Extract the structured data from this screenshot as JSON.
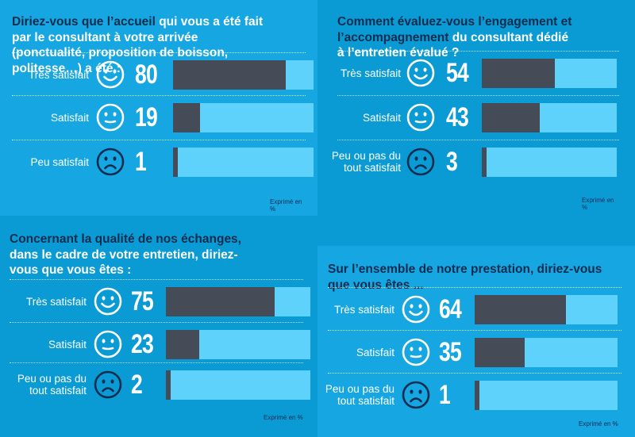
{
  "colors": {
    "background": "#16a6e2",
    "accent_block": "#0a9bd5",
    "bar_fill": "#454b57",
    "bar_track": "#5fd2fb",
    "highlight_text": "#0d2d4f"
  },
  "footer_label": "Exprimé en %",
  "icons": {
    "happy": "smiley-happy-icon",
    "neutral": "smiley-neutral-icon",
    "sad": "smiley-sad-icon"
  },
  "chart_data": [
    {
      "type": "bar",
      "title_bold": "Diriez-vous que l’accueil",
      "title_rest": " qui vous a été fait par le consultant à votre arrivée (ponctualité, proposition de boisson, politesse…) a été :",
      "categories": [
        "Très satisfait",
        "Satisfait",
        "Peu satisfait"
      ],
      "values": [
        80,
        19,
        1
      ],
      "xlim": [
        0,
        100
      ],
      "unit_note": "Exprimé en %"
    },
    {
      "type": "bar",
      "title_bold": "Comment évaluez-vous l’engagement et l’accompagnement",
      "title_rest": " du consultant dédié à l’entretien évalué ?",
      "categories": [
        "Très satisfait",
        "Satisfait",
        "Peu ou pas du tout satisfait"
      ],
      "values": [
        54,
        43,
        3
      ],
      "xlim": [
        0,
        100
      ],
      "unit_note": "Exprimé en %"
    },
    {
      "type": "bar",
      "title_bold": "Concernant la qualité de nos échanges,",
      "title_rest": " dans le cadre de votre entretien, diriez-vous que vous êtes :",
      "categories": [
        "Très satisfait",
        "Satisfait",
        "Peu ou pas du tout satisfait"
      ],
      "values": [
        75,
        23,
        2
      ],
      "xlim": [
        0,
        100
      ],
      "unit_note": "Exprimé en %"
    },
    {
      "type": "bar",
      "title_bold": "Sur l’ensemble de notre prestation, diriez-vous que vous êtes ...",
      "title_rest": "",
      "categories": [
        "Très satisfait",
        "Satisfait",
        "Peu ou pas du tout satisfait"
      ],
      "values": [
        64,
        35,
        1
      ],
      "xlim": [
        0,
        100
      ],
      "unit_note": "Exprimé en %"
    }
  ]
}
